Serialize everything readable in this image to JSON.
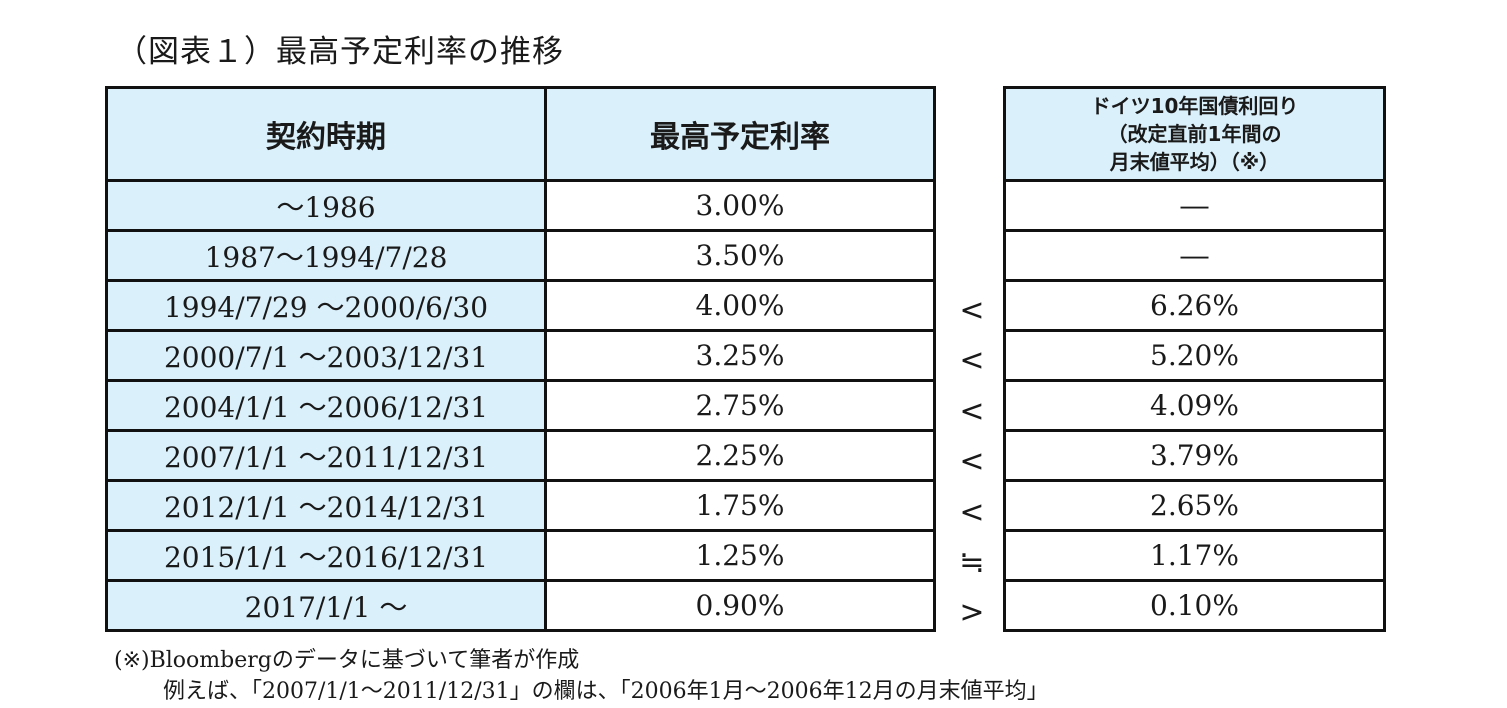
{
  "title": "（図表１）最高予定利率の推移",
  "headers": {
    "period": "契約時期",
    "max_rate": "最高予定利率",
    "bund_line1": "ドイツ10年国債利回り",
    "bund_line2": "（改定直前1年間の",
    "bund_line3": "月末値平均）（※）"
  },
  "rows": [
    {
      "period": "～1986",
      "rate": "3.00%",
      "cmp": "",
      "bund": "―"
    },
    {
      "period": "1987～1994/7/28",
      "rate": "3.50%",
      "cmp": "",
      "bund": "―"
    },
    {
      "period": "1994/7/29 ～2000/6/30",
      "rate": "4.00%",
      "cmp": "<",
      "bund": "6.26%"
    },
    {
      "period": "2000/7/1 ～2003/12/31",
      "rate": "3.25%",
      "cmp": "<",
      "bund": "5.20%"
    },
    {
      "period": "2004/1/1 ～2006/12/31",
      "rate": "2.75%",
      "cmp": "<",
      "bund": "4.09%"
    },
    {
      "period": "2007/1/1 ～2011/12/31",
      "rate": "2.25%",
      "cmp": "<",
      "bund": "3.79%"
    },
    {
      "period": "2012/1/1 ～2014/12/31",
      "rate": "1.75%",
      "cmp": "<",
      "bund": "2.65%"
    },
    {
      "period": "2015/1/1 ～2016/12/31",
      "rate": "1.25%",
      "cmp": "≒",
      "bund": "1.17%"
    },
    {
      "period": "2017/1/1 ～",
      "rate": "0.90%",
      "cmp": ">",
      "bund": "0.10%"
    }
  ],
  "notes": {
    "line1": "(※)Bloombergのデータに基づいて筆者が作成",
    "line2": "例えば、「2007/1/1～2011/12/31」の欄は、「2006年1月～2006年12月の月末値平均」"
  }
}
